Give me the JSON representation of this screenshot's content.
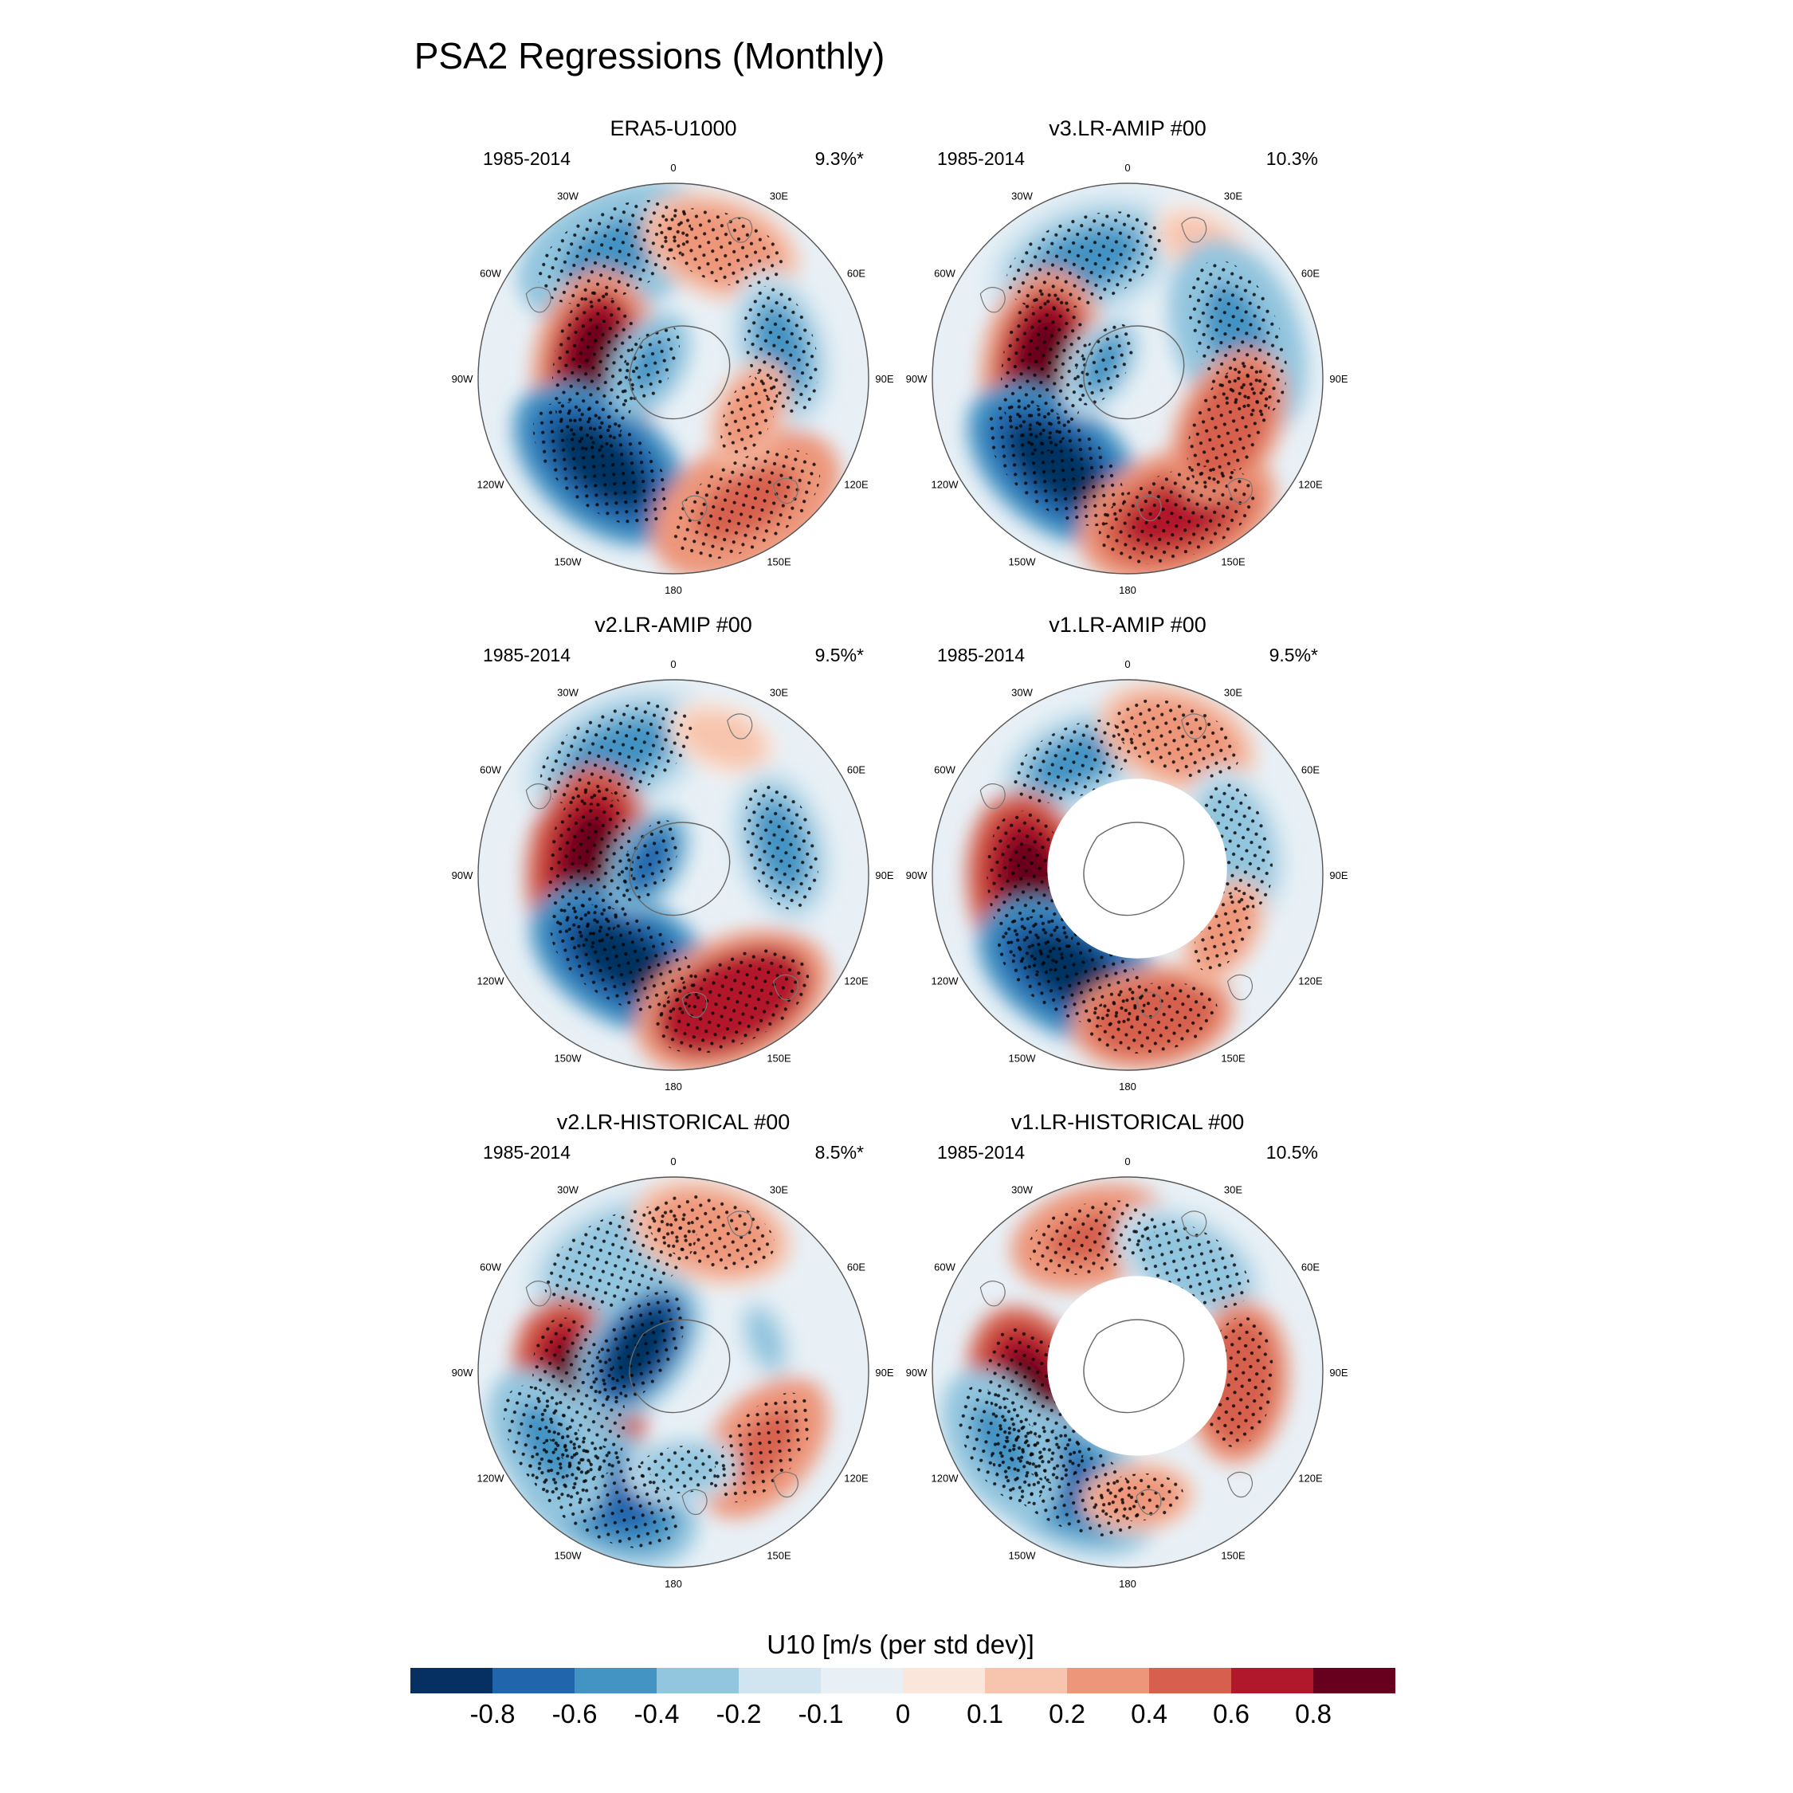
{
  "figure": {
    "title": "PSA2 Regressions (Monthly)"
  },
  "colorbar": {
    "label": "U10 [m/s (per std dev)]",
    "colors": [
      "#053061",
      "#2166ac",
      "#4393c3",
      "#92c5de",
      "#d1e5f0",
      "#e8f0f6",
      "#fbe6dc",
      "#f7c5ad",
      "#ed967a",
      "#d6604d",
      "#b2182b",
      "#67001f"
    ],
    "tick_labels": [
      "-0.8",
      "-0.6",
      "-0.4",
      "-0.2",
      "-0.1",
      "0",
      "0.1",
      "0.2",
      "0.4",
      "0.6",
      "0.8"
    ]
  },
  "longitude_labels": [
    "0",
    "30E",
    "60E",
    "90E",
    "120E",
    "150E",
    "180",
    "150W",
    "120W",
    "90W",
    "60W",
    "30W"
  ],
  "chart_data": [
    {
      "type": "heatmap",
      "title": "ERA5-U1000",
      "period": "1985-2014",
      "variance": "9.3%*",
      "masked_antarctica": false,
      "anomalies": [
        {
          "lon": -25,
          "lat": -40,
          "value": -0.5,
          "size": "large"
        },
        {
          "lon": 20,
          "lat": -40,
          "value": 0.3,
          "size": "medium"
        },
        {
          "lon": 75,
          "lat": -50,
          "value": -0.4,
          "size": "medium"
        },
        {
          "lon": -85,
          "lat": -62,
          "value": 0.85,
          "size": "large"
        },
        {
          "lon": -140,
          "lat": -50,
          "value": -0.9,
          "size": "large"
        },
        {
          "lon": 150,
          "lat": -38,
          "value": 0.5,
          "size": "large"
        },
        {
          "lon": -60,
          "lat": -80,
          "value": -0.5,
          "size": "small"
        },
        {
          "lon": 115,
          "lat": -60,
          "value": 0.3,
          "size": "small"
        }
      ]
    },
    {
      "type": "heatmap",
      "title": "v3.LR-AMIP  #00",
      "period": "1985-2014",
      "variance": "10.3%",
      "masked_antarctica": false,
      "anomalies": [
        {
          "lon": -20,
          "lat": -45,
          "value": -0.4,
          "size": "large"
        },
        {
          "lon": 30,
          "lat": -35,
          "value": 0.2,
          "size": "small"
        },
        {
          "lon": 70,
          "lat": -48,
          "value": -0.5,
          "size": "large"
        },
        {
          "lon": -85,
          "lat": -60,
          "value": 0.85,
          "size": "large"
        },
        {
          "lon": -140,
          "lat": -50,
          "value": -0.9,
          "size": "large"
        },
        {
          "lon": 160,
          "lat": -38,
          "value": 0.7,
          "size": "large"
        },
        {
          "lon": 115,
          "lat": -50,
          "value": 0.6,
          "size": "medium"
        },
        {
          "lon": -60,
          "lat": -80,
          "value": -0.4,
          "size": "small"
        }
      ]
    },
    {
      "type": "heatmap",
      "title": "v2.LR-AMIP  #00",
      "period": "1985-2014",
      "variance": "9.5%*",
      "masked_antarctica": false,
      "anomalies": [
        {
          "lon": -25,
          "lat": -42,
          "value": -0.4,
          "size": "large"
        },
        {
          "lon": 20,
          "lat": -38,
          "value": 0.2,
          "size": "small"
        },
        {
          "lon": 75,
          "lat": -50,
          "value": -0.4,
          "size": "medium"
        },
        {
          "lon": -85,
          "lat": -60,
          "value": 0.9,
          "size": "large"
        },
        {
          "lon": -150,
          "lat": -55,
          "value": -0.9,
          "size": "large"
        },
        {
          "lon": 155,
          "lat": -40,
          "value": 0.8,
          "size": "large"
        },
        {
          "lon": -60,
          "lat": -80,
          "value": -0.6,
          "size": "small"
        }
      ]
    },
    {
      "type": "heatmap",
      "title": "v1.LR-AMIP  #00",
      "period": "1985-2014",
      "variance": "9.5%*",
      "masked_antarctica": true,
      "anomalies": [
        {
          "lon": -25,
          "lat": -45,
          "value": -0.4,
          "size": "medium"
        },
        {
          "lon": 20,
          "lat": -38,
          "value": 0.4,
          "size": "medium"
        },
        {
          "lon": 75,
          "lat": -50,
          "value": -0.3,
          "size": "medium"
        },
        {
          "lon": -100,
          "lat": -55,
          "value": 0.9,
          "size": "large"
        },
        {
          "lon": -150,
          "lat": -50,
          "value": -0.9,
          "size": "large"
        },
        {
          "lon": 170,
          "lat": -38,
          "value": 0.6,
          "size": "medium"
        },
        {
          "lon": 120,
          "lat": -50,
          "value": 0.4,
          "size": "small"
        }
      ]
    },
    {
      "type": "heatmap",
      "title": "v2.LR-HISTORICAL  #00",
      "period": "1985-2014",
      "variance": "8.5%*",
      "masked_antarctica": false,
      "anomalies": [
        {
          "lon": -25,
          "lat": -45,
          "value": -0.3,
          "size": "large"
        },
        {
          "lon": 15,
          "lat": -38,
          "value": 0.3,
          "size": "medium"
        },
        {
          "lon": 70,
          "lat": -55,
          "value": -0.2,
          "size": "small"
        },
        {
          "lon": -105,
          "lat": -55,
          "value": 0.9,
          "size": "large"
        },
        {
          "lon": -55,
          "lat": -75,
          "value": -0.8,
          "size": "medium"
        },
        {
          "lon": -150,
          "lat": -40,
          "value": -0.7,
          "size": "large"
        },
        {
          "lon": -120,
          "lat": -38,
          "value": -0.5,
          "size": "medium"
        },
        {
          "lon": 130,
          "lat": -48,
          "value": 0.5,
          "size": "medium"
        },
        {
          "lon": 175,
          "lat": -55,
          "value": -0.3,
          "size": "small"
        }
      ]
    },
    {
      "type": "heatmap",
      "title": "v1.LR-HISTORICAL  #00",
      "period": "1985-2014",
      "variance": "10.5%",
      "masked_antarctica": true,
      "anomalies": [
        {
          "lon": -15,
          "lat": -40,
          "value": 0.5,
          "size": "medium"
        },
        {
          "lon": 30,
          "lat": -45,
          "value": -0.3,
          "size": "medium"
        },
        {
          "lon": 95,
          "lat": -50,
          "value": 0.6,
          "size": "medium"
        },
        {
          "lon": -110,
          "lat": -55,
          "value": 0.9,
          "size": "large"
        },
        {
          "lon": -150,
          "lat": -45,
          "value": -0.6,
          "size": "large"
        },
        {
          "lon": -120,
          "lat": -38,
          "value": -0.5,
          "size": "medium"
        },
        {
          "lon": 175,
          "lat": -45,
          "value": 0.4,
          "size": "small"
        }
      ]
    }
  ]
}
